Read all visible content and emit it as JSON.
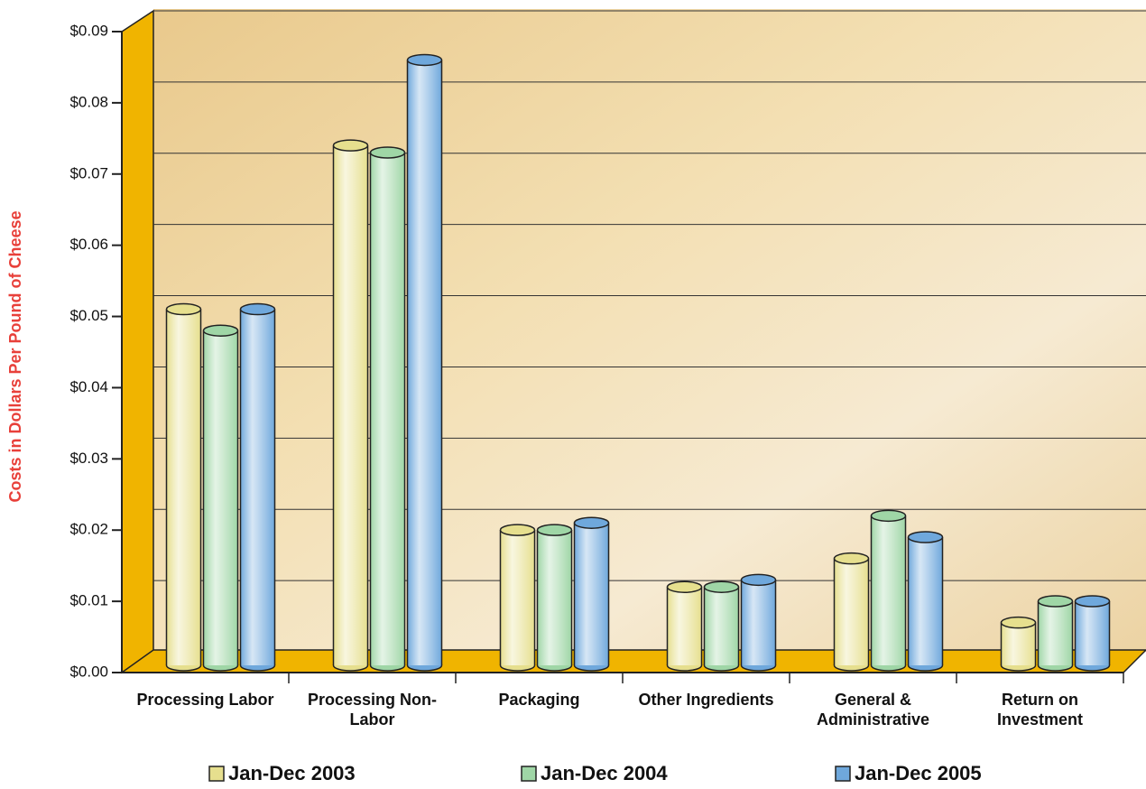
{
  "chart_data": {
    "type": "bar",
    "y_label": "Costs in Dollars Per Pound of Cheese",
    "categories": [
      "Processing Labor",
      "Processing Non-Labor",
      "Packaging",
      "Other Ingredients",
      "General & Administrative",
      "Return on Investment"
    ],
    "series": [
      {
        "name": "Jan-Dec 2003",
        "color": "#e6df8e",
        "values": [
          0.05,
          0.073,
          0.019,
          0.011,
          0.015,
          0.006
        ]
      },
      {
        "name": "Jan-Dec 2004",
        "color": "#9fd6a6",
        "values": [
          0.047,
          0.072,
          0.019,
          0.011,
          0.021,
          0.009
        ]
      },
      {
        "name": "Jan-Dec 2005",
        "color": "#6fa8dc",
        "values": [
          0.05,
          0.085,
          0.02,
          0.012,
          0.018,
          0.009
        ]
      }
    ],
    "ylim": [
      0,
      0.09
    ],
    "yticks": [
      {
        "value": 0,
        "label": "$0.00"
      },
      {
        "value": 0.01,
        "label": "$0.01"
      },
      {
        "value": 0.02,
        "label": "$0.02"
      },
      {
        "value": 0.03,
        "label": "$0.03"
      },
      {
        "value": 0.04,
        "label": "$0.04"
      },
      {
        "value": 0.05,
        "label": "$0.05"
      },
      {
        "value": 0.06,
        "label": "$0.06"
      },
      {
        "value": 0.07,
        "label": "$0.07"
      },
      {
        "value": 0.08,
        "label": "$0.08"
      },
      {
        "value": 0.09,
        "label": "$0.09"
      }
    ],
    "grid": true,
    "legend": "bottom"
  }
}
